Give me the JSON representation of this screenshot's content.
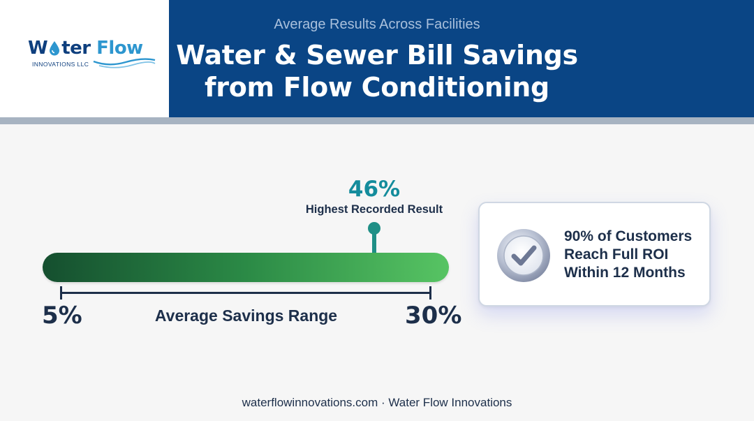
{
  "logo": {
    "word_start": "W",
    "word_end": "ter",
    "word_flow": "Flow",
    "subtitle": "INNOVATIONS LLC",
    "icon": "water-drop-icon"
  },
  "header": {
    "subtitle": "Average Results Across Facilities",
    "title_line1": "Water & Sewer Bill Savings",
    "title_line2": "from Flow Conditioning"
  },
  "highlight": {
    "value": "46%",
    "label": "Highest Recorded Result",
    "percent_value": 46
  },
  "range": {
    "min_label": "5%",
    "max_label": "30%",
    "label": "Average Savings Range",
    "min": 5,
    "max": 30
  },
  "roi_card": {
    "icon": "checkmark-badge-icon",
    "line1": "90% of Customers",
    "line2": "Reach Full ROI",
    "line3": "Within 12 Months"
  },
  "footer": {
    "text": "waterflowinnovations.com · Water Flow Innovations"
  },
  "colors": {
    "header_bg": "#0a4585",
    "accent_teal": "#148c9c",
    "bar_start": "#154f2f",
    "bar_end": "#57c463",
    "text_dark": "#1d2f4a"
  }
}
